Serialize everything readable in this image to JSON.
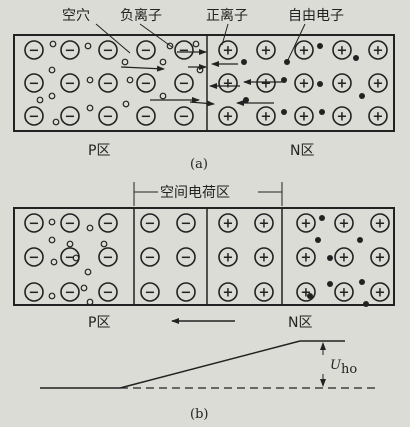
{
  "part_a": {
    "labels": {
      "hole": "空穴",
      "negative_ion": "负离子",
      "positive_ion": "正离子",
      "free_electron": "自由电子"
    },
    "p_region": "P区",
    "n_region": "N区",
    "caption": "(a)"
  },
  "part_b": {
    "space_charge_region": "空间电荷区",
    "p_region": "P区",
    "n_region": "N区",
    "potential_label_main": "U",
    "potential_label_sub": "ho",
    "caption": "(b)"
  },
  "symbols": {
    "negative_ion": "−",
    "positive_ion": "+"
  },
  "colors": {
    "background": "#dcdcd6",
    "ink": "#222222"
  }
}
